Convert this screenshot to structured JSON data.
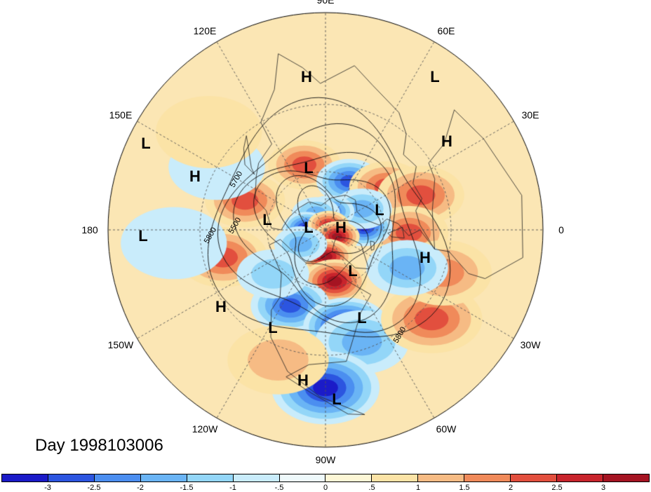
{
  "map": {
    "projection": "polar stereographic (northern hemisphere)",
    "longitude_labels": [
      {
        "text": "90E",
        "bearing": 0
      },
      {
        "text": "60E",
        "bearing": 30
      },
      {
        "text": "30E",
        "bearing": 60
      },
      {
        "text": "0",
        "bearing": 90
      },
      {
        "text": "30W",
        "bearing": 120
      },
      {
        "text": "60W",
        "bearing": 150
      },
      {
        "text": "90W",
        "bearing": 180
      },
      {
        "text": "120W",
        "bearing": 210
      },
      {
        "text": "150W",
        "bearing": 240
      },
      {
        "text": "180",
        "bearing": 270
      },
      {
        "text": "150E",
        "bearing": 300
      },
      {
        "text": "120E",
        "bearing": 330
      }
    ],
    "pressure_centers": [
      {
        "text": "H",
        "at": "Siberia near 90E"
      },
      {
        "text": "L",
        "at": "Barents Sea near 60E"
      },
      {
        "text": "H",
        "at": "Eastern Europe near 30E"
      },
      {
        "text": "L",
        "at": "Western Pacific near 150E"
      },
      {
        "text": "H",
        "at": "North Pacific west of 180"
      },
      {
        "text": "L",
        "at": "Pacific near 180"
      },
      {
        "text": "L",
        "at": "East Siberian Sea"
      },
      {
        "text": "L",
        "at": "Laptev Sea"
      },
      {
        "text": "L",
        "at": "Near North Pole"
      },
      {
        "text": "H",
        "at": "Arctic toward Greenland"
      },
      {
        "text": "L",
        "at": "Norwegian Sea"
      },
      {
        "text": "H",
        "at": "Eastern Atlantic near 0"
      },
      {
        "text": "L",
        "at": "Canadian Arctic"
      },
      {
        "text": "H",
        "at": "Northeast Pacific"
      },
      {
        "text": "L",
        "at": "Western North America"
      },
      {
        "text": "L",
        "at": "Eastern North America"
      },
      {
        "text": "H",
        "at": "Gulf of Mexico"
      },
      {
        "text": "L",
        "at": "Central America"
      }
    ],
    "contour_labels": [
      "5700",
      "5500",
      "5800",
      "5800"
    ],
    "anomaly_regions": [
      {
        "lon": 108,
        "lat": 55,
        "value": 1.6
      },
      {
        "lon": 64,
        "lat": 62,
        "value": -2.2
      },
      {
        "lon": 35,
        "lat": 52,
        "value": 1.7
      },
      {
        "lon": 20,
        "lat": 40,
        "value": 2.0
      },
      {
        "lon": -2,
        "lat": 48,
        "value": 1.9
      },
      {
        "lon": 5,
        "lat": 70,
        "value": -2.6
      },
      {
        "lon": 30,
        "lat": 68,
        "value": -1.3
      },
      {
        "lon": 75,
        "lat": 80,
        "value": -2.4
      },
      {
        "lon": 120,
        "lat": 80,
        "value": -1.2
      },
      {
        "lon": 175,
        "lat": 80,
        "value": -2.6
      },
      {
        "lon": 60,
        "lat": 87,
        "value": 2.2
      },
      {
        "lon": -30,
        "lat": 83,
        "value": 2.9
      },
      {
        "lon": -88,
        "lat": 76,
        "value": 2.8
      },
      {
        "lon": -80,
        "lat": 63,
        "value": 2.6
      },
      {
        "lon": -150,
        "lat": 75,
        "value": -1.2
      },
      {
        "lon": -115,
        "lat": 48,
        "value": -2.3
      },
      {
        "lon": -78,
        "lat": 41,
        "value": -3.2
      },
      {
        "lon": -72,
        "lat": 33,
        "value": -1.5
      },
      {
        "lon": -90,
        "lat": 18,
        "value": -2.9
      },
      {
        "lon": -110,
        "lat": 25,
        "value": 0.9
      },
      {
        "lon": 160,
        "lat": 47,
        "value": 1.9
      },
      {
        "lon": -165,
        "lat": 38,
        "value": 1.7
      },
      {
        "lon": -40,
        "lat": 25,
        "value": 1.8
      },
      {
        "lon": -20,
        "lat": 30,
        "value": 1.5
      },
      {
        "lon": -25,
        "lat": 45,
        "value": -1.4
      },
      {
        "lon": -140,
        "lat": 55,
        "value": -1.0
      },
      {
        "lon": 150,
        "lat": 30,
        "value": -0.5
      },
      {
        "lon": -175,
        "lat": 20,
        "value": -0.5
      },
      {
        "lon": 140,
        "lat": 20,
        "value": 0.5
      }
    ]
  },
  "caption": {
    "day_label": "Day 1998103006"
  },
  "colorbar": {
    "colors": [
      "#1b1bc8",
      "#2c55e0",
      "#4b8ef0",
      "#6ab4f5",
      "#93d6f8",
      "#c9ecfb",
      "#eef9fb",
      "#fdf7d6",
      "#fbe3a6",
      "#f6bb84",
      "#f08a5a",
      "#e24f3e",
      "#c8242c",
      "#a51422"
    ],
    "tick_labels": [
      "-3",
      "-2.5",
      "-2",
      "-1.5",
      "-1",
      "-.5",
      "0",
      ".5",
      "1",
      "1.5",
      "2",
      "2.5",
      "3"
    ]
  }
}
